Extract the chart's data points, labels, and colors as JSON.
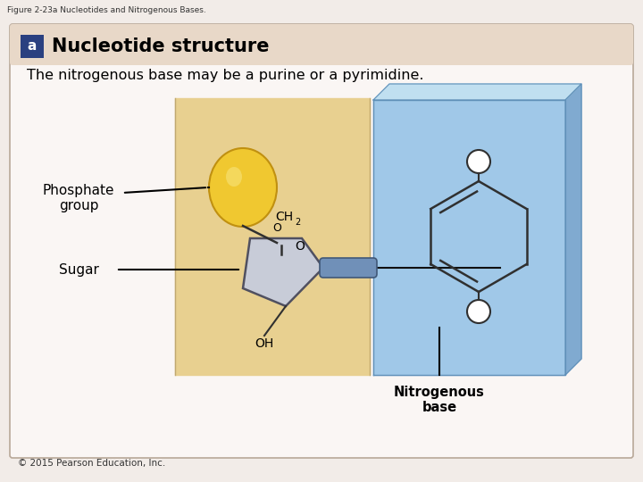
{
  "fig_label": "Figure 2-23a Nucleotides and Nitrogenous Bases.",
  "section_letter": "a",
  "section_title": "Nucleotide structure",
  "subtitle": "The nitrogenous base may be a purine or a pyrimidine.",
  "label_phosphate": "Phosphate\ngroup",
  "label_sugar": "Sugar",
  "label_nitro": "Nitrogenous\nbase",
  "label_ch2": "CH",
  "label_ch2_sub": "2",
  "label_o_ring": "O",
  "label_oh": "OH",
  "bg_outer": "#f2ece8",
  "bg_main": "#faf6f4",
  "header_bg": "#e8d8c8",
  "phosphate_box_bg": "#e8d090",
  "nitro_box_main": "#a0c8e8",
  "nitro_box_top": "#c0dff0",
  "nitro_box_side": "#80aad0",
  "phosphate_ball_color": "#f0c830",
  "phosphate_ball_edge": "#c09010",
  "sugar_ring_color": "#c8ccd8",
  "sugar_ring_edge": "#505060",
  "nitro_ring_edge": "#303030",
  "small_circle_fill": "#ffffff",
  "small_circle_edge": "#303030",
  "connector_fill": "#7090b8",
  "connector_edge": "#405878",
  "connector_line": "#101010",
  "copyright": "© 2015 Pearson Education, Inc.",
  "letter_bg": "#2a4080"
}
